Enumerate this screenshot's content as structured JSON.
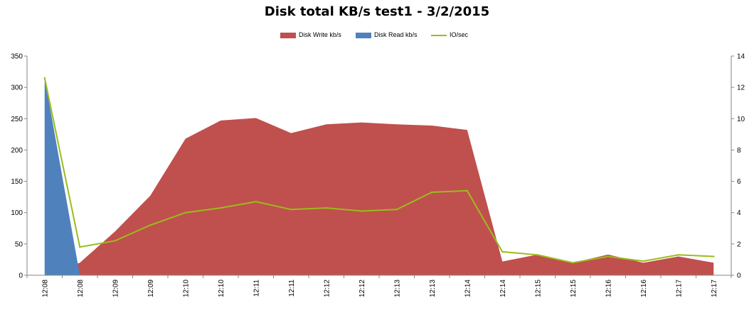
{
  "chart_data": {
    "type": "area",
    "title": "Disk total KB/s test1 - 3/2/2015",
    "categories": [
      "12:08",
      "12:08",
      "12:09",
      "12:09",
      "12:10",
      "12:10",
      "12:11",
      "12:11",
      "12:12",
      "12:12",
      "12:13",
      "12:13",
      "12:14",
      "12:14",
      "12:15",
      "12:15",
      "12:16",
      "12:16",
      "12:17",
      "12:17"
    ],
    "series": [
      {
        "name": "Disk Write kb/s",
        "type": "area",
        "axis": "left",
        "color": "#c0504d",
        "values": [
          0,
          20,
          70,
          127,
          218,
          247,
          251,
          227,
          241,
          244,
          241,
          239,
          232,
          22,
          33,
          20,
          33,
          20,
          30,
          20
        ]
      },
      {
        "name": "Disk Read kb/s",
        "type": "area",
        "axis": "left",
        "color": "#4f81bd",
        "values": [
          316,
          0,
          0,
          0,
          0,
          0,
          0,
          0,
          0,
          0,
          0,
          0,
          0,
          0,
          0,
          0,
          0,
          0,
          0,
          0
        ]
      },
      {
        "name": "IO/sec",
        "type": "line",
        "axis": "right",
        "color": "#9bbb1c",
        "values": [
          12.6,
          1.8,
          2.2,
          3.2,
          4.0,
          4.3,
          4.7,
          4.2,
          4.3,
          4.1,
          4.2,
          5.3,
          5.4,
          1.5,
          1.3,
          0.8,
          1.2,
          0.9,
          1.3,
          1.2
        ]
      }
    ],
    "ylim": [
      0,
      350
    ],
    "yticks": [
      0,
      50,
      100,
      150,
      200,
      250,
      300,
      350
    ],
    "y2lim": [
      0,
      14
    ],
    "y2ticks": [
      0,
      2,
      4,
      6,
      8,
      10,
      12,
      14
    ],
    "xlabel": "",
    "ylabel": "",
    "y2label": "",
    "grid": false,
    "legend": "top-center"
  }
}
